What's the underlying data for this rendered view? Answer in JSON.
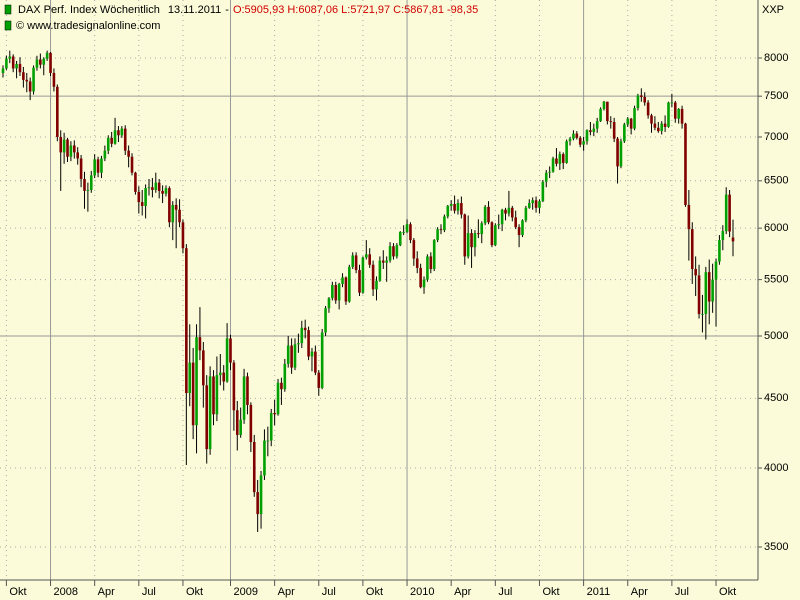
{
  "chart_data": {
    "type": "candlestick",
    "title": "DAX Perf. Index Wöchentlich",
    "date": "13.11.2011",
    "separator": "-",
    "quote": "O:5905,93 H:6087,06 L:5721,97 C:5867,81 -98,35",
    "source": "© www.tradesignalonline.com",
    "symbol": "XXP",
    "log_y": true,
    "grid": true,
    "up_color": "#00a000",
    "down_color": "#800000",
    "wick_color": "#000000",
    "quote_color": "#d00000",
    "ylim": [
      3310,
      8824
    ],
    "yticks": [
      3500,
      4000,
      4500,
      5000,
      5500,
      6000,
      6500,
      7000,
      7500,
      8000
    ],
    "categories": [
      null,
      "Okt",
      null,
      null,
      null,
      null,
      null,
      null,
      null,
      null,
      null,
      null,
      null,
      null,
      "2008",
      null,
      null,
      null,
      null,
      null,
      null,
      null,
      null,
      null,
      null,
      null,
      null,
      "Apr",
      null,
      null,
      null,
      null,
      null,
      null,
      null,
      null,
      null,
      null,
      null,
      null,
      "Jul",
      null,
      null,
      null,
      null,
      null,
      null,
      null,
      null,
      null,
      null,
      null,
      null,
      "Okt",
      null,
      null,
      null,
      null,
      null,
      null,
      null,
      null,
      null,
      null,
      null,
      null,
      null,
      "2009",
      null,
      null,
      null,
      null,
      null,
      null,
      null,
      null,
      null,
      null,
      null,
      null,
      "Apr",
      null,
      null,
      null,
      null,
      null,
      null,
      null,
      null,
      null,
      null,
      null,
      null,
      "Jul",
      null,
      null,
      null,
      null,
      null,
      null,
      null,
      null,
      null,
      null,
      null,
      null,
      "Okt",
      null,
      null,
      null,
      null,
      null,
      null,
      null,
      null,
      null,
      null,
      null,
      null,
      "2010",
      null,
      null,
      null,
      null,
      null,
      null,
      null,
      null,
      null,
      null,
      null,
      null,
      "Apr",
      null,
      null,
      null,
      null,
      null,
      null,
      null,
      null,
      null,
      null,
      null,
      null,
      "Jul",
      null,
      null,
      null,
      null,
      null,
      null,
      null,
      null,
      null,
      null,
      null,
      null,
      "Okt",
      null,
      null,
      null,
      null,
      null,
      null,
      null,
      null,
      null,
      null,
      null,
      null,
      "2011",
      null,
      null,
      null,
      null,
      null,
      null,
      null,
      null,
      null,
      null,
      null,
      null,
      "Apr",
      null,
      null,
      null,
      null,
      null,
      null,
      null,
      null,
      null,
      null,
      null,
      null,
      "Jul",
      null,
      null,
      null,
      null,
      null,
      null,
      null,
      null,
      null,
      null,
      null,
      null,
      "Okt",
      null,
      null,
      null,
      null,
      null
    ],
    "ohlc": [
      [
        7800,
        7900,
        7740,
        7860
      ],
      [
        7860,
        8030,
        7840,
        7990
      ],
      [
        7990,
        8100,
        7930,
        8020
      ],
      [
        8020,
        8050,
        7810,
        7860
      ],
      [
        7860,
        7960,
        7730,
        7920
      ],
      [
        7920,
        8010,
        7760,
        7810
      ],
      [
        7810,
        7880,
        7610,
        7710
      ],
      [
        7710,
        7800,
        7550,
        7690
      ],
      [
        7690,
        7740,
        7450,
        7560
      ],
      [
        7560,
        7900,
        7520,
        7870
      ],
      [
        7870,
        8030,
        7830,
        7980
      ],
      [
        7980,
        8060,
        7860,
        7910
      ],
      [
        7910,
        8010,
        7770,
        7990
      ],
      [
        7990,
        8100,
        7960,
        8070
      ],
      [
        8070,
        8080,
        7760,
        7800
      ],
      [
        7800,
        7860,
        7560,
        7620
      ],
      [
        7620,
        7650,
        6950,
        7000
      ],
      [
        7000,
        7080,
        6390,
        6820
      ],
      [
        6820,
        7050,
        6690,
        6970
      ],
      [
        6970,
        6990,
        6710,
        6770
      ],
      [
        6770,
        6950,
        6720,
        6900
      ],
      [
        6900,
        6960,
        6750,
        6820
      ],
      [
        6820,
        6880,
        6680,
        6750
      ],
      [
        6750,
        6790,
        6430,
        6520
      ],
      [
        6520,
        6600,
        6200,
        6390
      ],
      [
        6390,
        6480,
        6170,
        6400
      ],
      [
        6400,
        6610,
        6370,
        6560
      ],
      [
        6560,
        6800,
        6530,
        6740
      ],
      [
        6740,
        6770,
        6540,
        6590
      ],
      [
        6590,
        6780,
        6530,
        6750
      ],
      [
        6750,
        6900,
        6720,
        6840
      ],
      [
        6840,
        7020,
        6800,
        6990
      ],
      [
        6990,
        7060,
        6880,
        6920
      ],
      [
        6920,
        7230,
        6910,
        7080
      ],
      [
        7080,
        7130,
        6940,
        7020
      ],
      [
        7020,
        7130,
        6990,
        7100
      ],
      [
        7100,
        7140,
        6790,
        6840
      ],
      [
        6840,
        6900,
        6650,
        6770
      ],
      [
        6770,
        6810,
        6560,
        6590
      ],
      [
        6590,
        6600,
        6350,
        6380
      ],
      [
        6380,
        6440,
        6150,
        6270
      ],
      [
        6270,
        6400,
        6130,
        6230
      ],
      [
        6230,
        6460,
        6100,
        6420
      ],
      [
        6420,
        6520,
        6340,
        6430
      ],
      [
        6430,
        6530,
        6320,
        6400
      ],
      [
        6400,
        6590,
        6370,
        6480
      ],
      [
        6480,
        6520,
        6310,
        6390
      ],
      [
        6390,
        6450,
        6260,
        6360
      ],
      [
        6360,
        6450,
        6330,
        6420
      ],
      [
        6420,
        6440,
        6010,
        6060
      ],
      [
        6060,
        6280,
        5880,
        6240
      ],
      [
        6240,
        6310,
        5800,
        6190
      ],
      [
        6190,
        6300,
        6010,
        6060
      ],
      [
        6060,
        6090,
        5750,
        5800
      ],
      [
        5800,
        5840,
        4020,
        4540
      ],
      [
        4540,
        5100,
        4440,
        4780
      ],
      [
        4780,
        4900,
        4200,
        4300
      ],
      [
        4300,
        5100,
        4100,
        4990
      ],
      [
        4990,
        5250,
        4800,
        4880
      ],
      [
        4880,
        4950,
        4430,
        4600
      ],
      [
        4600,
        4680,
        4030,
        4130
      ],
      [
        4130,
        4750,
        4090,
        4670
      ],
      [
        4670,
        4720,
        4300,
        4380
      ],
      [
        4380,
        4830,
        4330,
        4680
      ],
      [
        4680,
        4850,
        4600,
        4700
      ],
      [
        4700,
        4760,
        4560,
        4630
      ],
      [
        4630,
        5110,
        4620,
        4980
      ],
      [
        4980,
        5010,
        4720,
        4780
      ],
      [
        4780,
        4800,
        4260,
        4410
      ],
      [
        4410,
        4480,
        4120,
        4230
      ],
      [
        4230,
        4430,
        4210,
        4340
      ],
      [
        4340,
        4730,
        4310,
        4670
      ],
      [
        4670,
        4700,
        4380,
        4450
      ],
      [
        4450,
        4470,
        4110,
        4180
      ],
      [
        4180,
        4230,
        3810,
        3840
      ],
      [
        3840,
        3920,
        3590,
        3700
      ],
      [
        3700,
        3980,
        3610,
        3950
      ],
      [
        3950,
        4270,
        3920,
        4190
      ],
      [
        4190,
        4290,
        4080,
        4190
      ],
      [
        4190,
        4420,
        4150,
        4390
      ],
      [
        4390,
        4490,
        4300,
        4380
      ],
      [
        4380,
        4650,
        4370,
        4620
      ],
      [
        4620,
        4660,
        4450,
        4570
      ],
      [
        4570,
        4810,
        4550,
        4770
      ],
      [
        4770,
        5000,
        4740,
        4920
      ],
      [
        4920,
        4980,
        4690,
        4740
      ],
      [
        4740,
        4980,
        4720,
        4930
      ],
      [
        4930,
        5020,
        4860,
        4940
      ],
      [
        4940,
        5130,
        4900,
        5070
      ],
      [
        5070,
        5140,
        4980,
        5050
      ],
      [
        5050,
        5080,
        4800,
        4830
      ],
      [
        4830,
        4900,
        4710,
        4870
      ],
      [
        4870,
        4920,
        4680,
        4700
      ],
      [
        4700,
        4720,
        4520,
        4580
      ],
      [
        4580,
        5060,
        4570,
        5030
      ],
      [
        5030,
        5260,
        5000,
        5240
      ],
      [
        5240,
        5340,
        5200,
        5330
      ],
      [
        5330,
        5480,
        5310,
        5450
      ],
      [
        5450,
        5480,
        5280,
        5310
      ],
      [
        5310,
        5470,
        5230,
        5460
      ],
      [
        5460,
        5560,
        5430,
        5520
      ],
      [
        5520,
        5530,
        5270,
        5300
      ],
      [
        5300,
        5640,
        5290,
        5620
      ],
      [
        5620,
        5760,
        5600,
        5730
      ],
      [
        5730,
        5760,
        5560,
        5590
      ],
      [
        5590,
        5640,
        5350,
        5380
      ],
      [
        5380,
        5720,
        5370,
        5710
      ],
      [
        5710,
        5880,
        5690,
        5740
      ],
      [
        5740,
        5800,
        5610,
        5640
      ],
      [
        5640,
        5680,
        5350,
        5410
      ],
      [
        5410,
        5530,
        5310,
        5490
      ],
      [
        5490,
        5720,
        5480,
        5680
      ],
      [
        5680,
        5780,
        5600,
        5660
      ],
      [
        5660,
        5720,
        5480,
        5680
      ],
      [
        5680,
        5860,
        5660,
        5820
      ],
      [
        5820,
        5850,
        5690,
        5720
      ],
      [
        5720,
        5850,
        5700,
        5830
      ],
      [
        5830,
        5970,
        5820,
        5960
      ],
      [
        5960,
        6030,
        5930,
        5960
      ],
      [
        5960,
        6090,
        5950,
        6040
      ],
      [
        6040,
        6060,
        5850,
        5880
      ],
      [
        5880,
        5900,
        5630,
        5700
      ],
      [
        5700,
        5770,
        5560,
        5610
      ],
      [
        5610,
        5650,
        5420,
        5430
      ],
      [
        5430,
        5530,
        5370,
        5500
      ],
      [
        5500,
        5740,
        5480,
        5720
      ],
      [
        5720,
        5760,
        5560,
        5600
      ],
      [
        5600,
        5890,
        5580,
        5880
      ],
      [
        5880,
        6010,
        5860,
        5990
      ],
      [
        5990,
        6040,
        5940,
        5980
      ],
      [
        5980,
        6140,
        5960,
        6120
      ],
      [
        6120,
        6240,
        6100,
        6230
      ],
      [
        6230,
        6290,
        6180,
        6250
      ],
      [
        6250,
        6340,
        6150,
        6180
      ],
      [
        6180,
        6300,
        6140,
        6260
      ],
      [
        6260,
        6330,
        6100,
        6140
      ],
      [
        6140,
        6150,
        5640,
        5720
      ],
      [
        5720,
        6130,
        5700,
        5950
      ],
      [
        5950,
        5990,
        5610,
        5810
      ],
      [
        5810,
        5980,
        5720,
        5950
      ],
      [
        5950,
        6090,
        5900,
        5940
      ],
      [
        5940,
        6070,
        5850,
        6050
      ],
      [
        6050,
        6240,
        6030,
        6220
      ],
      [
        6220,
        6280,
        6040,
        6060
      ],
      [
        6060,
        6070,
        5810,
        5830
      ],
      [
        5830,
        6050,
        5820,
        6030
      ],
      [
        6030,
        6140,
        5990,
        6040
      ],
      [
        6040,
        6200,
        5970,
        6190
      ],
      [
        6190,
        6210,
        6080,
        6150
      ],
      [
        6150,
        6390,
        6120,
        6210
      ],
      [
        6210,
        6230,
        6070,
        6110
      ],
      [
        6110,
        6180,
        5990,
        6010
      ],
      [
        6010,
        6040,
        5810,
        5930
      ],
      [
        5930,
        6090,
        5910,
        6080
      ],
      [
        6080,
        6230,
        6060,
        6210
      ],
      [
        6210,
        6300,
        6200,
        6260
      ],
      [
        6260,
        6320,
        6190,
        6290
      ],
      [
        6290,
        6330,
        6160,
        6210
      ],
      [
        6210,
        6300,
        6150,
        6280
      ],
      [
        6280,
        6510,
        6270,
        6490
      ],
      [
        6490,
        6620,
        6430,
        6590
      ],
      [
        6590,
        6660,
        6530,
        6600
      ],
      [
        6600,
        6770,
        6590,
        6750
      ],
      [
        6750,
        6870,
        6660,
        6690
      ],
      [
        6690,
        6830,
        6620,
        6800
      ],
      [
        6800,
        6820,
        6630,
        6700
      ],
      [
        6700,
        6970,
        6690,
        6950
      ],
      [
        6950,
        7000,
        6900,
        6980
      ],
      [
        6980,
        7080,
        6960,
        7040
      ],
      [
        7040,
        7070,
        6970,
        6990
      ],
      [
        6990,
        7010,
        6880,
        6910
      ],
      [
        6910,
        7000,
        6840,
        6950
      ],
      [
        6950,
        7090,
        6910,
        7080
      ],
      [
        7080,
        7180,
        7020,
        7060
      ],
      [
        7060,
        7160,
        7010,
        7100
      ],
      [
        7100,
        7230,
        7050,
        7190
      ],
      [
        7190,
        7360,
        7180,
        7340
      ],
      [
        7340,
        7440,
        7320,
        7430
      ],
      [
        7430,
        7430,
        7150,
        7190
      ],
      [
        7190,
        7250,
        7100,
        7180
      ],
      [
        7180,
        7230,
        6940,
        6980
      ],
      [
        6980,
        7000,
        6470,
        6660
      ],
      [
        6660,
        6980,
        6640,
        6950
      ],
      [
        6950,
        7170,
        6930,
        7150
      ],
      [
        7150,
        7240,
        7120,
        7220
      ],
      [
        7220,
        7230,
        7030,
        7100
      ],
      [
        7100,
        7380,
        7080,
        7350
      ],
      [
        7350,
        7530,
        7320,
        7510
      ],
      [
        7510,
        7600,
        7430,
        7490
      ],
      [
        7490,
        7550,
        7380,
        7420
      ],
      [
        7420,
        7450,
        7220,
        7260
      ],
      [
        7260,
        7280,
        7050,
        7160
      ],
      [
        7160,
        7250,
        7080,
        7110
      ],
      [
        7110,
        7180,
        7050,
        7070
      ],
      [
        7070,
        7190,
        7030,
        7160
      ],
      [
        7160,
        7260,
        7060,
        7120
      ],
      [
        7120,
        7430,
        7110,
        7420
      ],
      [
        7420,
        7530,
        7360,
        7420
      ],
      [
        7420,
        7440,
        7170,
        7220
      ],
      [
        7220,
        7350,
        7160,
        7340
      ],
      [
        7340,
        7380,
        7100,
        7160
      ],
      [
        7160,
        7170,
        6220,
        6240
      ],
      [
        6240,
        6400,
        5680,
        5990
      ],
      [
        5990,
        6060,
        5460,
        5600
      ],
      [
        5600,
        5720,
        5350,
        5540
      ],
      [
        5540,
        5640,
        5150,
        5190
      ],
      [
        5190,
        5360,
        5030,
        5190
      ],
      [
        5190,
        5620,
        4970,
        5570
      ],
      [
        5570,
        5690,
        5100,
        5300
      ],
      [
        5300,
        5650,
        5200,
        5500
      ],
      [
        5500,
        5700,
        5080,
        5670
      ],
      [
        5670,
        5930,
        5640,
        5880
      ],
      [
        5880,
        6030,
        5780,
        5970
      ],
      [
        5970,
        6430,
        5940,
        6350
      ],
      [
        6350,
        6400,
        5910,
        5966
      ],
      [
        5905.93,
        6087.06,
        5721.97,
        5867.81
      ]
    ]
  }
}
